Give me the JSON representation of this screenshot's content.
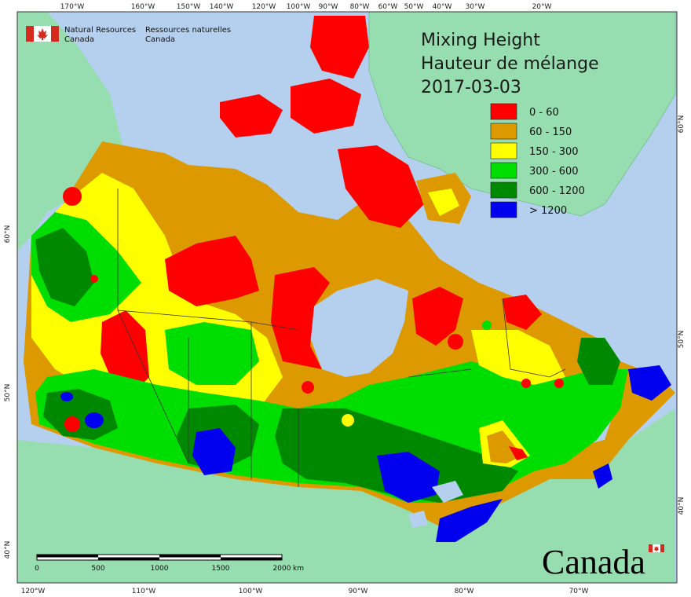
{
  "title": {
    "line1": "Mixing Height",
    "line2": "Hauteur de mélange",
    "date": "2017-03-03"
  },
  "organization": {
    "en_line1": "Natural Resources",
    "en_line2": "Canada",
    "fr_line1": "Ressources naturelles",
    "fr_line2": "Canada"
  },
  "legend": [
    {
      "label": "0 - 60",
      "color": "#ff0000"
    },
    {
      "label": "60 - 150",
      "color": "#dd9900"
    },
    {
      "label": "150 - 300",
      "color": "#ffff00"
    },
    {
      "label": "300 - 600",
      "color": "#00dd00"
    },
    {
      "label": "600 - 1200",
      "color": "#008800"
    },
    {
      "label": "> 1200",
      "color": "#0000ee"
    }
  ],
  "graticule": {
    "top": [
      "170°W",
      "160°W",
      "150°W",
      "140°W",
      "120°W",
      "100°W",
      "90°W",
      "80°W",
      "60°W",
      "50°W",
      "40°W",
      "30°W",
      "20°W"
    ],
    "bottom": [
      "120°W",
      "110°W",
      "100°W",
      "90°W",
      "80°W",
      "70°W"
    ],
    "left": [
      "60°N",
      "50°N",
      "40°N"
    ],
    "right": [
      "60°N",
      "50°N",
      "40°N"
    ]
  },
  "scale_bar": {
    "ticks": [
      "0",
      "500",
      "1000",
      "1500",
      "2000"
    ],
    "unit": "km"
  },
  "wordmark": "Canada",
  "colors": {
    "ocean": "#b4d0ee",
    "land_outside": "#96ddb0",
    "border": "#333333"
  }
}
